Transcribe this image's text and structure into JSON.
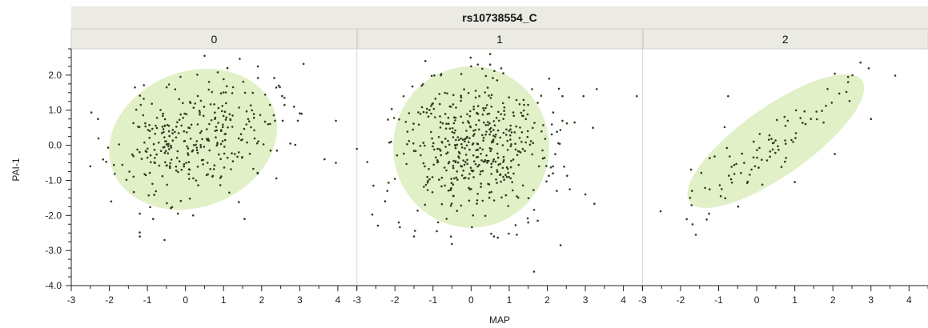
{
  "chart_data": {
    "type": "scatter",
    "title": "rs10738554_C",
    "xlabel": "MAP",
    "ylabel": "PAI-1",
    "xlim": [
      -3,
      4.5
    ],
    "ylim": [
      -4.0,
      2.75
    ],
    "x_ticks": [
      "-3",
      "-2",
      "-1",
      "0",
      "1",
      "2",
      "3",
      "4"
    ],
    "y_ticks": [
      "-4.0",
      "-3.0",
      "-2.0",
      "-1.0",
      "0.0",
      "1.0",
      "2.0"
    ],
    "colors": {
      "points": "#2f3d1e",
      "ellipse": "#e2f0c8",
      "strip": "#ebebe4",
      "divider": "#d8d8d8"
    },
    "panels": [
      {
        "label": "0",
        "ellipse": {
          "cx": 0.2,
          "cy": 0.17,
          "rx": 2.3,
          "ry": 1.9,
          "angle_deg": 30
        },
        "outliers": [
          [
            0.5,
            2.55
          ],
          [
            1.1,
            2.2
          ],
          [
            -2.3,
            0.75
          ],
          [
            -2.5,
            -0.6
          ],
          [
            -1.95,
            -1.6
          ],
          [
            -1.2,
            -1.95
          ],
          [
            -1.2,
            -2.6
          ],
          [
            -0.55,
            -2.7
          ],
          [
            -0.85,
            -2.1
          ],
          [
            -0.2,
            -1.95
          ],
          [
            0.2,
            -2.0
          ],
          [
            1.15,
            -1.35
          ],
          [
            1.55,
            -2.1
          ],
          [
            1.9,
            -0.8
          ],
          [
            2.45,
            1.7
          ],
          [
            2.6,
            1.35
          ],
          [
            2.6,
            1.15
          ],
          [
            2.55,
            0.7
          ],
          [
            2.35,
            0.7
          ],
          [
            2.85,
            1.1
          ],
          [
            3.05,
            0.9
          ],
          [
            2.95,
            0.7
          ],
          [
            2.4,
            -0.15
          ],
          [
            2.75,
            0.05
          ],
          [
            3.65,
            -0.4
          ],
          [
            3.95,
            0.7
          ],
          [
            3.95,
            -0.5
          ]
        ],
        "clusters": [
          {
            "n": 320,
            "cx": 0.2,
            "cy": 0.17,
            "sx": 1.0,
            "sy": 0.85,
            "rho": 0.28,
            "seed": 11
          }
        ]
      },
      {
        "label": "1",
        "ellipse": {
          "cx": 0.0,
          "cy": -0.05,
          "rx": 2.05,
          "ry": 2.3,
          "angle_deg": 0
        },
        "outliers": [
          [
            -1.2,
            2.4
          ],
          [
            0.0,
            2.25
          ],
          [
            0.5,
            2.6
          ],
          [
            0.5,
            2.3
          ],
          [
            1.6,
            1.6
          ],
          [
            2.05,
            1.9
          ],
          [
            2.4,
            1.4
          ],
          [
            2.95,
            1.4
          ],
          [
            3.3,
            1.6
          ],
          [
            4.35,
            1.4
          ],
          [
            2.4,
            0.7
          ],
          [
            3.2,
            0.5
          ],
          [
            2.15,
            -0.6
          ],
          [
            2.15,
            -0.8
          ],
          [
            2.25,
            -1.3
          ],
          [
            3.0,
            -1.4
          ],
          [
            -3.0,
            -0.1
          ],
          [
            -2.1,
            0.1
          ],
          [
            -2.2,
            -1.3
          ],
          [
            -3.15,
            -2.6
          ],
          [
            -1.9,
            -2.2
          ],
          [
            -1.5,
            -2.6
          ],
          [
            -0.9,
            -2.45
          ],
          [
            0.05,
            -2.0
          ],
          [
            0.6,
            -2.6
          ],
          [
            1.5,
            -2.2
          ],
          [
            1.2,
            -2.55
          ],
          [
            1.75,
            -2.15
          ],
          [
            2.35,
            -2.85
          ],
          [
            1.65,
            -3.6
          ]
        ],
        "clusters": [
          {
            "n": 470,
            "cx": 0.0,
            "cy": -0.05,
            "sx": 0.95,
            "sy": 1.0,
            "rho": 0.0,
            "seed": 23
          }
        ]
      },
      {
        "label": "2",
        "ellipse": {
          "cx": 0.5,
          "cy": 0.12,
          "rx": 2.85,
          "ry": 0.95,
          "angle_deg": 38
        },
        "outliers": [
          [
            -1.6,
            -2.55
          ],
          [
            -1.25,
            -1.95
          ],
          [
            -0.75,
            1.4
          ],
          [
            3.0,
            0.75
          ],
          [
            2.4,
            1.95
          ],
          [
            2.4,
            1.8
          ],
          [
            2.05,
            -0.25
          ],
          [
            1.0,
            -1.05
          ],
          [
            -1.75,
            -1.5
          ],
          [
            -1.7,
            -1.3
          ]
        ],
        "clusters": [
          {
            "n": 90,
            "cx": 0.45,
            "cy": 0.1,
            "sx": 1.1,
            "sy": 0.95,
            "rho": 0.88,
            "seed": 37
          }
        ]
      }
    ]
  }
}
